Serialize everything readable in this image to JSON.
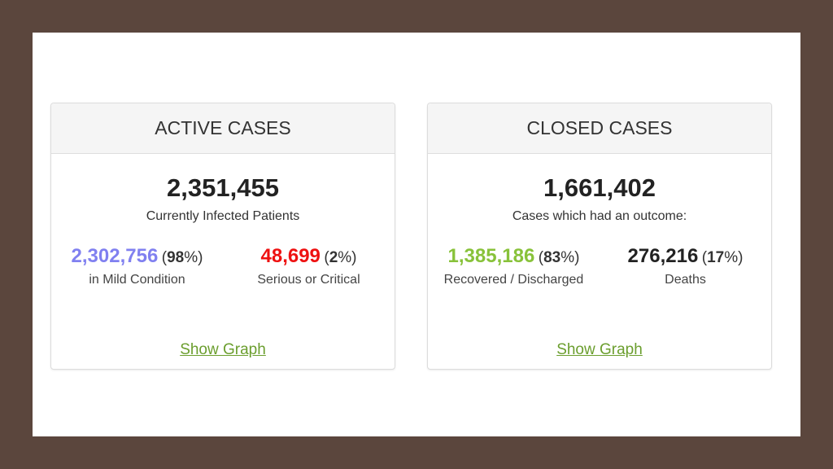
{
  "active": {
    "title": "ACTIVE CASES",
    "total": "2,351,455",
    "subtitle": "Currently Infected Patients",
    "left": {
      "value": "2,302,756",
      "pct": "98",
      "label": "in Mild Condition"
    },
    "right": {
      "value": "48,699",
      "pct": "2",
      "label": "Serious or Critical"
    },
    "link": "Show Graph"
  },
  "closed": {
    "title": "CLOSED CASES",
    "total": "1,661,402",
    "subtitle": "Cases which had an outcome:",
    "left": {
      "value": "1,385,186",
      "pct": "83",
      "label": "Recovered / Discharged"
    },
    "right": {
      "value": "276,216",
      "pct": "17",
      "label": "Deaths"
    },
    "link": "Show Graph"
  },
  "colors": {
    "mild": "#8080f0",
    "critical": "#ee1111",
    "recovered": "#88c23a",
    "deaths": "#222222"
  }
}
